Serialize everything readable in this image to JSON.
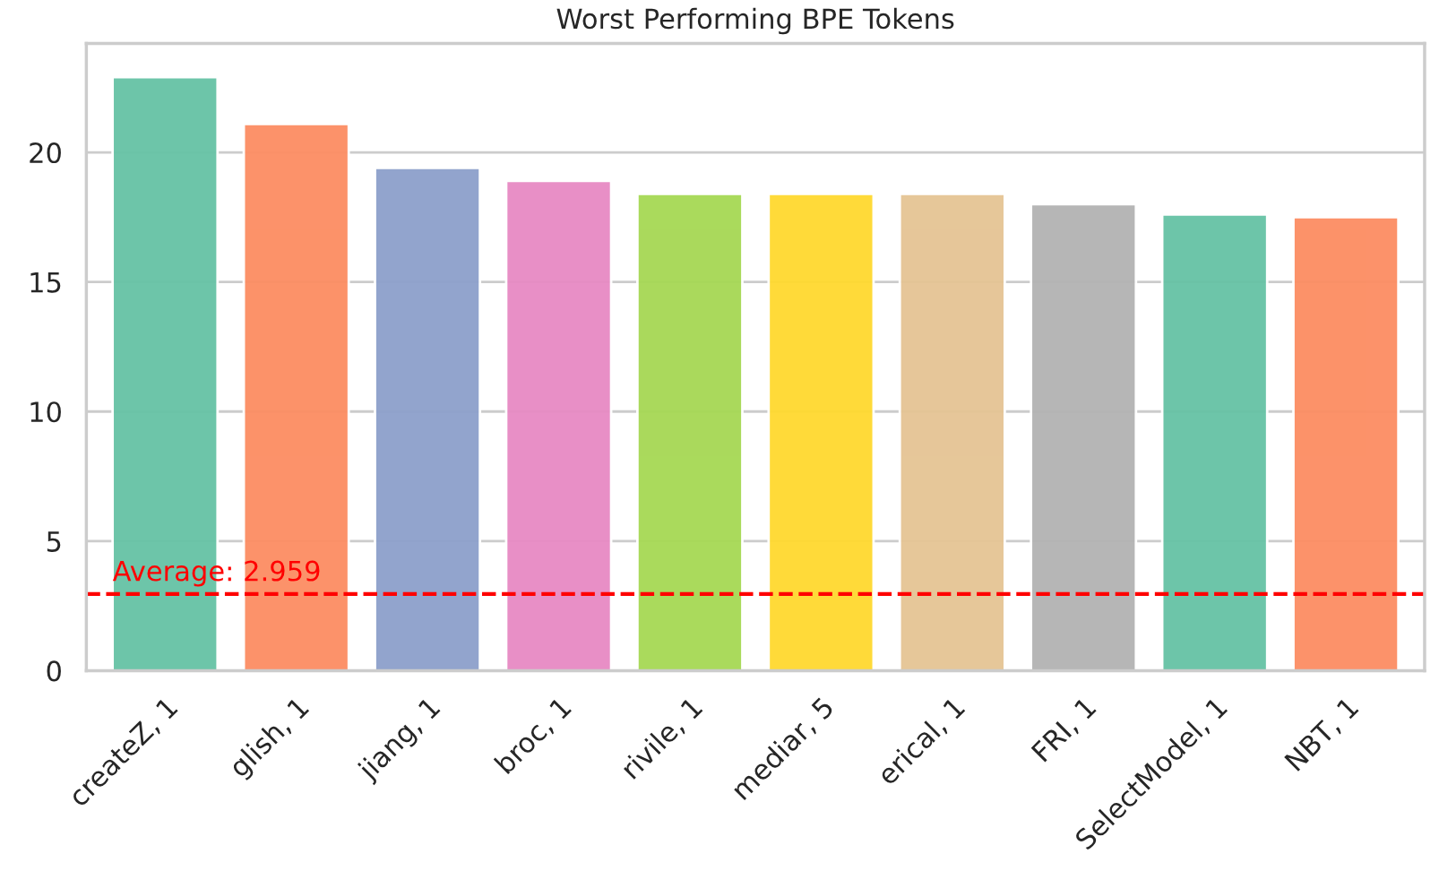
{
  "chart_data": {
    "type": "bar",
    "title": "Worst Performing BPE Tokens",
    "categories": [
      "createZ, 1",
      "glish, 1",
      "jiang, 1",
      "broc, 1",
      "rivile, 1",
      "mediar, 5",
      "erical, 1",
      "FRI, 1",
      "SelectModel, 1",
      "NBT, 1"
    ],
    "values": [
      22.9,
      21.1,
      19.4,
      18.9,
      18.4,
      18.4,
      18.4,
      18.0,
      17.6,
      17.5
    ],
    "colors": [
      "#66c2a5",
      "#fc8d62",
      "#8da0cb",
      "#e78ac3",
      "#a6d854",
      "#ffd92f",
      "#e5c494",
      "#b3b3b3",
      "#66c2a5",
      "#fc8d62"
    ],
    "ylim": [
      0,
      24.2
    ],
    "yticks": [
      0,
      5,
      10,
      15,
      20
    ],
    "grid": "y",
    "ref_lines": [
      {
        "axis": "y",
        "value": 2.959,
        "label": "Average: 2.959",
        "color": "#ff0000",
        "line_style": "dashed"
      }
    ]
  }
}
